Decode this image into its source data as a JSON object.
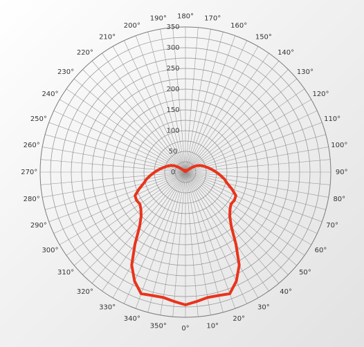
{
  "chart_data": {
    "type": "line",
    "coordinate_system": "polar",
    "angle_labels": [
      "0°",
      "10°",
      "20°",
      "30°",
      "40°",
      "50°",
      "60°",
      "70°",
      "80°",
      "90°",
      "100°",
      "110°",
      "120°",
      "130°",
      "140°",
      "150°",
      "160°",
      "170°",
      "180°",
      "190°",
      "200°",
      "210°",
      "220°",
      "230°",
      "240°",
      "250°",
      "260°",
      "270°",
      "280°",
      "290°",
      "300°",
      "310°",
      "320°",
      "330°",
      "340°",
      "350°"
    ],
    "angle_tick_step": 10,
    "radial_labels": [
      "0",
      "50",
      "100",
      "150",
      "200",
      "250",
      "300",
      "350"
    ],
    "rlim": [
      0,
      350
    ],
    "zero_angle_direction": "down",
    "angle_direction": "counterclockwise",
    "grid": true,
    "series": [
      {
        "color": "#e8341c",
        "angles": [
          0,
          5,
          10,
          15,
          20,
          25,
          30,
          35,
          40,
          45,
          50,
          55,
          60,
          65,
          70,
          75,
          80,
          85,
          90,
          95,
          100,
          105,
          110,
          115,
          120,
          125,
          130,
          135,
          140,
          145,
          150,
          155,
          160,
          165,
          170,
          175,
          180,
          185,
          190,
          195,
          200,
          205,
          210,
          215,
          220,
          225,
          230,
          235,
          240,
          245,
          250,
          255,
          260,
          265,
          270,
          275,
          280,
          285,
          290,
          295,
          300,
          305,
          310,
          315,
          320,
          325,
          330,
          335,
          340,
          345,
          350,
          355
        ],
        "values": [
          320,
          313,
          307,
          308,
          312,
          290,
          259,
          212,
          172,
          151,
          140,
          134,
          136,
          134,
          119,
          104,
          95,
          84,
          74,
          65,
          57,
          50,
          44,
          38,
          31,
          21,
          11,
          5,
          3,
          2,
          3,
          4,
          5,
          4,
          3,
          2,
          1,
          2,
          3,
          4,
          5,
          4,
          3,
          2,
          3,
          5,
          11,
          21,
          31,
          38,
          44,
          50,
          57,
          65,
          74,
          84,
          95,
          104,
          119,
          134,
          136,
          134,
          140,
          151,
          172,
          212,
          259,
          290,
          312,
          308,
          307,
          313
        ]
      }
    ]
  }
}
